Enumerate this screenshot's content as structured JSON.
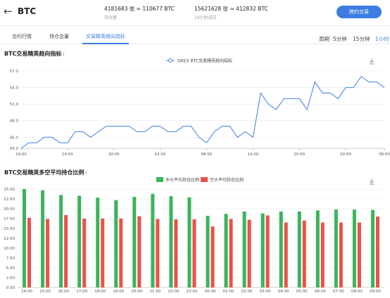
{
  "header": {
    "back_icon": "arrow-left-icon",
    "coin": "BTC",
    "position_value": "4181683 张 ≈ 110677 BTC",
    "position_label": "持仓量",
    "volume_value": "15621628 张 ≈ 412832 BTC",
    "volume_label": "24小时成交",
    "trade_button": "跨约交易"
  },
  "tabs": [
    "合约行情",
    "持仓总量",
    "交易精英趋向指标"
  ],
  "intervals": [
    "周期",
    "5分钟",
    "15分钟",
    "1小时"
  ],
  "chart1": {
    "title": "BTC交易精英趋向指标",
    "info": "i",
    "legend": "OKEX BTC交易精英趋向指标",
    "yticks": [
      "57.0",
      "54.0",
      "51.0",
      "48.0",
      "45.0",
      "43.0"
    ],
    "xticks": [
      "10:00",
      "14:00",
      "20:00",
      "02:00",
      "08:00",
      "14:00",
      "20:00",
      "02:00",
      "08:00"
    ]
  },
  "chart2": {
    "title": "BTC交易精英多空平均持仓比例",
    "info": "i",
    "legend_long": "多头平均持仓比例",
    "legend_short": "空头平均持仓比例",
    "yticks": [
      "25.00",
      "22.50",
      "20.00",
      "17.50",
      "15.00",
      "12.50",
      "10.00",
      "7.50",
      "5.00",
      "2.50",
      "0.00"
    ],
    "xticks": [
      "14:00",
      "15:00",
      "16:00",
      "17:00",
      "18:00",
      "19:00",
      "20:00",
      "21:00",
      "22:00",
      "23:00",
      "00:00",
      "01:00",
      "02:00",
      "03:00",
      "04:00",
      "05:00",
      "06:00",
      "07:00",
      "08:00",
      "09:00"
    ]
  },
  "chart_data": [
    {
      "type": "line",
      "title": "BTC交易精英趋向指标",
      "series": [
        {
          "name": "OKEX BTC交易精英趋向指标",
          "values": [
            43,
            44,
            44,
            45,
            45,
            44,
            44,
            46,
            46,
            45,
            46,
            47,
            47,
            47,
            47,
            46,
            46,
            47,
            47,
            46,
            46,
            47,
            47,
            45,
            44,
            46,
            47,
            47,
            45,
            46,
            45,
            53,
            51,
            50,
            52,
            52,
            52,
            50,
            55,
            53,
            53,
            52,
            54,
            54,
            56,
            55,
            55,
            54
          ]
        }
      ],
      "ylim": [
        43,
        57
      ],
      "color": "#3d7de0"
    },
    {
      "type": "bar",
      "title": "BTC交易精英多空平均持仓比例",
      "categories": [
        "14:00",
        "15:00",
        "16:00",
        "17:00",
        "18:00",
        "19:00",
        "20:00",
        "21:00",
        "22:00",
        "23:00",
        "00:00",
        "01:00",
        "02:00",
        "03:00",
        "04:00",
        "05:00",
        "06:00",
        "07:00",
        "08:00",
        "09:00"
      ],
      "series": [
        {
          "name": "多头平均持仓比例",
          "color": "#3cb35c",
          "values": [
            25.0,
            24.7,
            23.5,
            23.3,
            22.8,
            22.2,
            23.0,
            23.8,
            23.2,
            22.9,
            18.2,
            18.7,
            19.3,
            18.8,
            19.3,
            19.3,
            19.6,
            19.8,
            19.8,
            19.7
          ]
        },
        {
          "name": "空头平均持仓比例",
          "color": "#e8524a",
          "values": [
            17.7,
            17.4,
            18.4,
            17.5,
            17.5,
            17.5,
            18.1,
            17.4,
            17.3,
            17.3,
            15.5,
            17.4,
            17.2,
            18.3,
            16.5,
            17.0,
            16.5,
            16.5,
            16.5,
            18.0
          ]
        }
      ],
      "ylim": [
        0,
        25
      ]
    }
  ]
}
